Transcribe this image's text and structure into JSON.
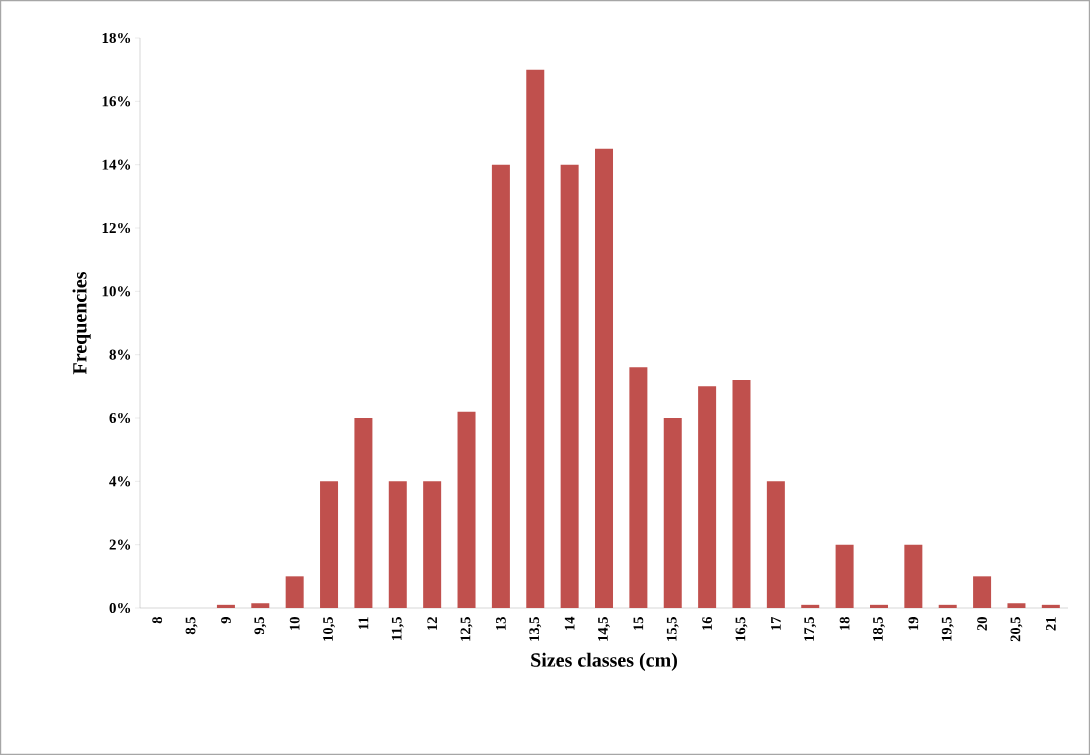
{
  "chart_data": {
    "type": "bar",
    "xlabel": "Sizes classes (cm)",
    "ylabel": "Frequencies",
    "categories": [
      "8",
      "8,5",
      "9",
      "9,5",
      "10",
      "10,5",
      "11",
      "11,5",
      "12",
      "12,5",
      "13",
      "13,5",
      "14",
      "14,5",
      "15",
      "15,5",
      "16",
      "16,5",
      "17",
      "17,5",
      "18",
      "18,5",
      "19",
      "19,5",
      "20",
      "20,5",
      "21"
    ],
    "values": [
      0,
      0,
      0.1,
      0.15,
      1,
      4,
      6,
      4,
      4,
      6.2,
      14,
      17,
      14,
      14.5,
      7.6,
      6,
      7,
      7.2,
      4,
      0.1,
      2,
      0.1,
      2,
      0.1,
      1,
      0.15,
      0.1
    ],
    "color": "#c0504d",
    "ylim": [
      0,
      18
    ],
    "yticks": [
      {
        "value": 0,
        "label": "0%"
      },
      {
        "value": 2,
        "label": "2%"
      },
      {
        "value": 4,
        "label": "4%"
      },
      {
        "value": 6,
        "label": "6%"
      },
      {
        "value": 8,
        "label": "8%"
      },
      {
        "value": 10,
        "label": "10%"
      },
      {
        "value": 12,
        "label": "12%"
      },
      {
        "value": 14,
        "label": "14%"
      },
      {
        "value": 16,
        "label": "16%"
      },
      {
        "value": 18,
        "label": "18%"
      }
    ],
    "grid": false
  }
}
